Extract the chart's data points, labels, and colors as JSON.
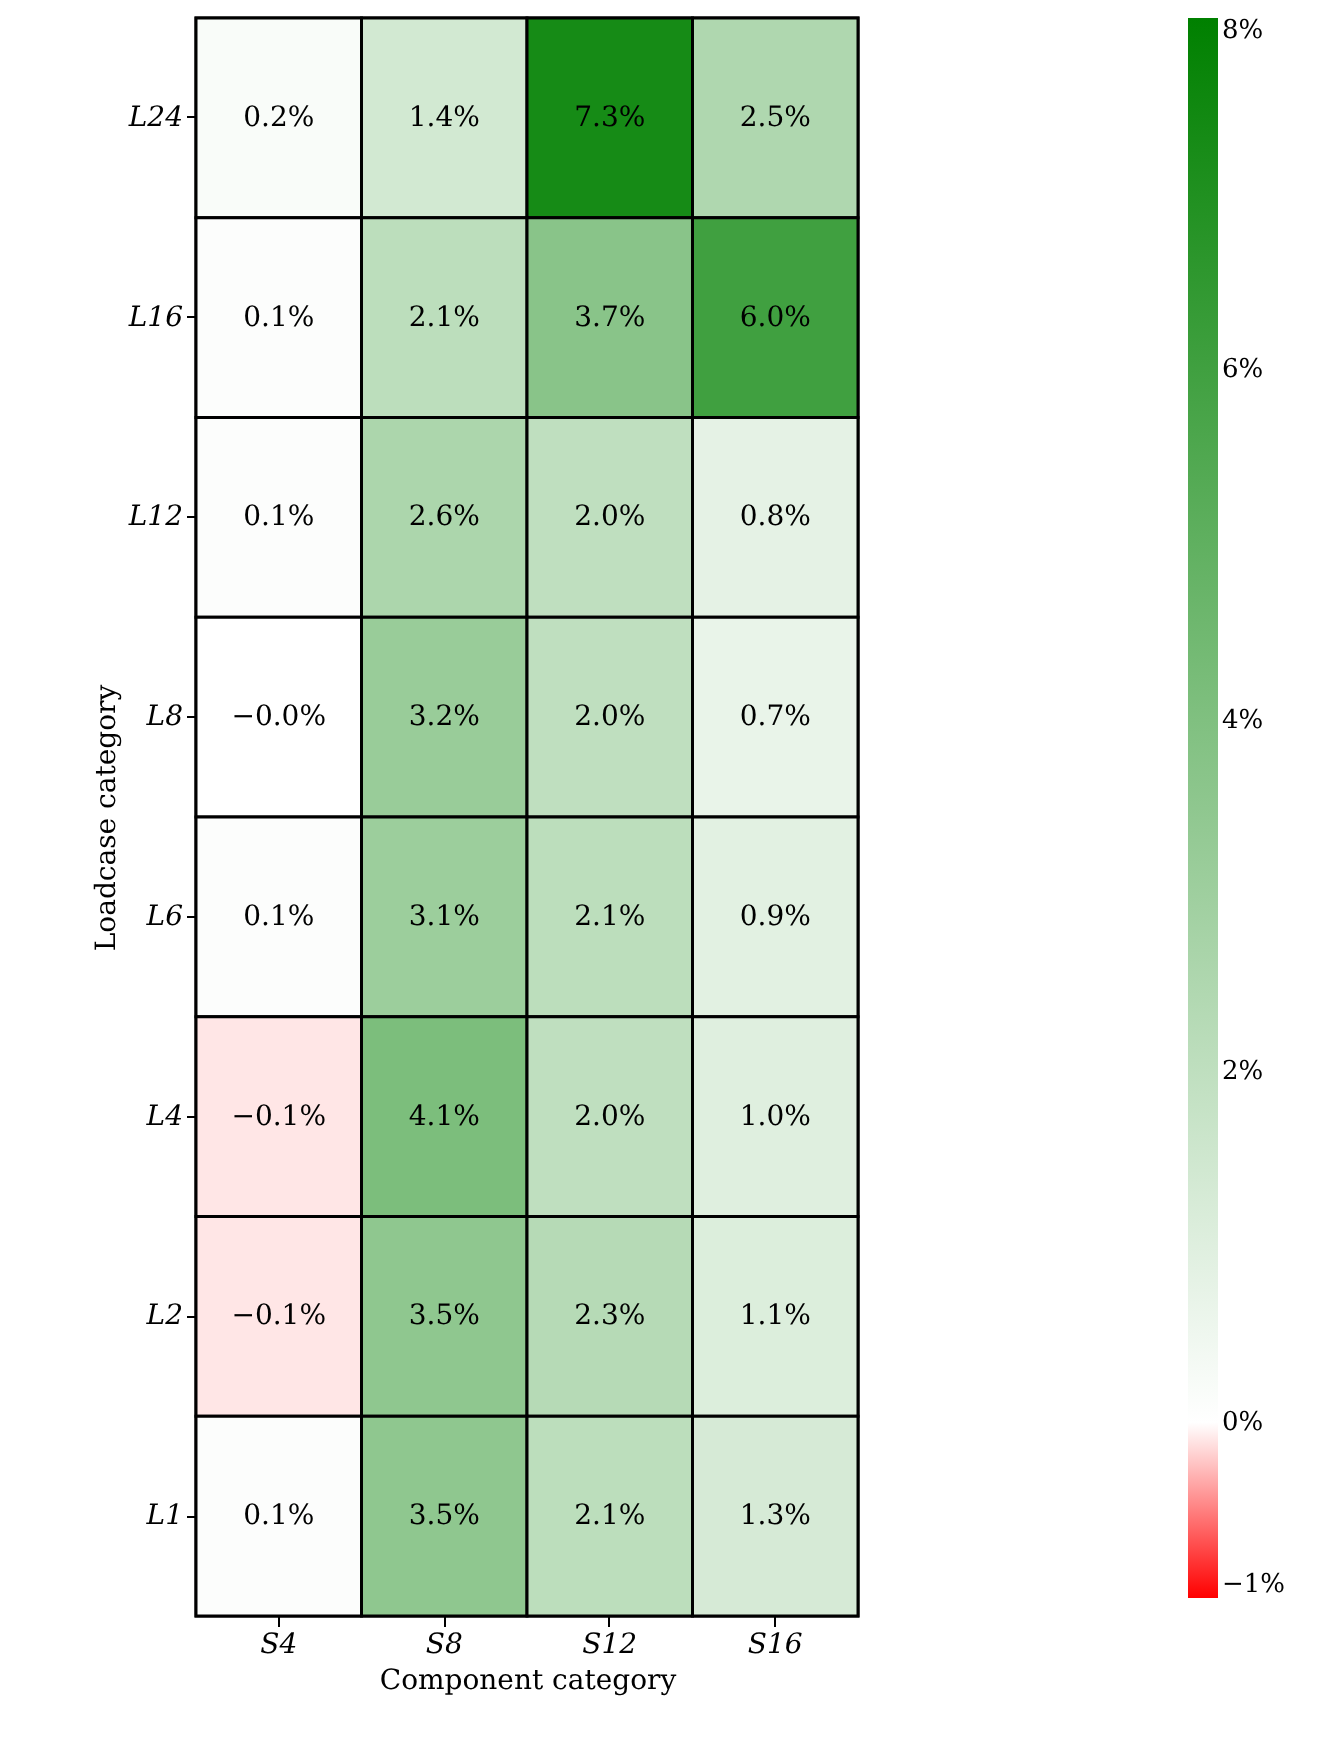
{
  "chart_data": {
    "type": "heatmap",
    "xlabel": "Component category",
    "ylabel": "Loadcase category",
    "categories": [
      "S4",
      "S8",
      "S12",
      "S16"
    ],
    "y_categories": [
      "L24",
      "L16",
      "L12",
      "L8",
      "L6",
      "L4",
      "L2",
      "L1"
    ],
    "cells": [
      [
        0.2,
        1.4,
        7.3,
        2.5
      ],
      [
        0.1,
        2.1,
        3.7,
        6.0
      ],
      [
        0.1,
        2.6,
        2.0,
        0.8
      ],
      [
        -0.0,
        3.2,
        2.0,
        0.7
      ],
      [
        0.1,
        3.1,
        2.1,
        0.9
      ],
      [
        -0.1,
        4.1,
        2.0,
        1.0
      ],
      [
        -0.1,
        3.5,
        2.3,
        1.1
      ],
      [
        0.1,
        3.5,
        2.1,
        1.3
      ]
    ],
    "cell_labels": [
      [
        "0.2%",
        "1.4%",
        "7.3%",
        "2.5%"
      ],
      [
        "0.1%",
        "2.1%",
        "3.7%",
        "6.0%"
      ],
      [
        "0.1%",
        "2.6%",
        "2.0%",
        "0.8%"
      ],
      [
        "−0.0%",
        "3.2%",
        "2.0%",
        "0.7%"
      ],
      [
        "0.1%",
        "3.1%",
        "2.1%",
        "0.9%"
      ],
      [
        "−0.1%",
        "4.1%",
        "2.0%",
        "1.0%"
      ],
      [
        "−0.1%",
        "3.5%",
        "2.3%",
        "1.1%"
      ],
      [
        "0.1%",
        "3.5%",
        "2.1%",
        "1.3%"
      ]
    ],
    "clim": [
      -1,
      8
    ],
    "cticks": [
      {
        "value": -1,
        "label": "−1%"
      },
      {
        "value": 0,
        "label": "0%"
      },
      {
        "value": 2,
        "label": "2%"
      },
      {
        "value": 4,
        "label": "4%"
      },
      {
        "value": 6,
        "label": "6%"
      },
      {
        "value": 8,
        "label": "8%"
      }
    ],
    "colors": [
      "#ff0000",
      "#ffffff",
      "#008000"
    ]
  }
}
